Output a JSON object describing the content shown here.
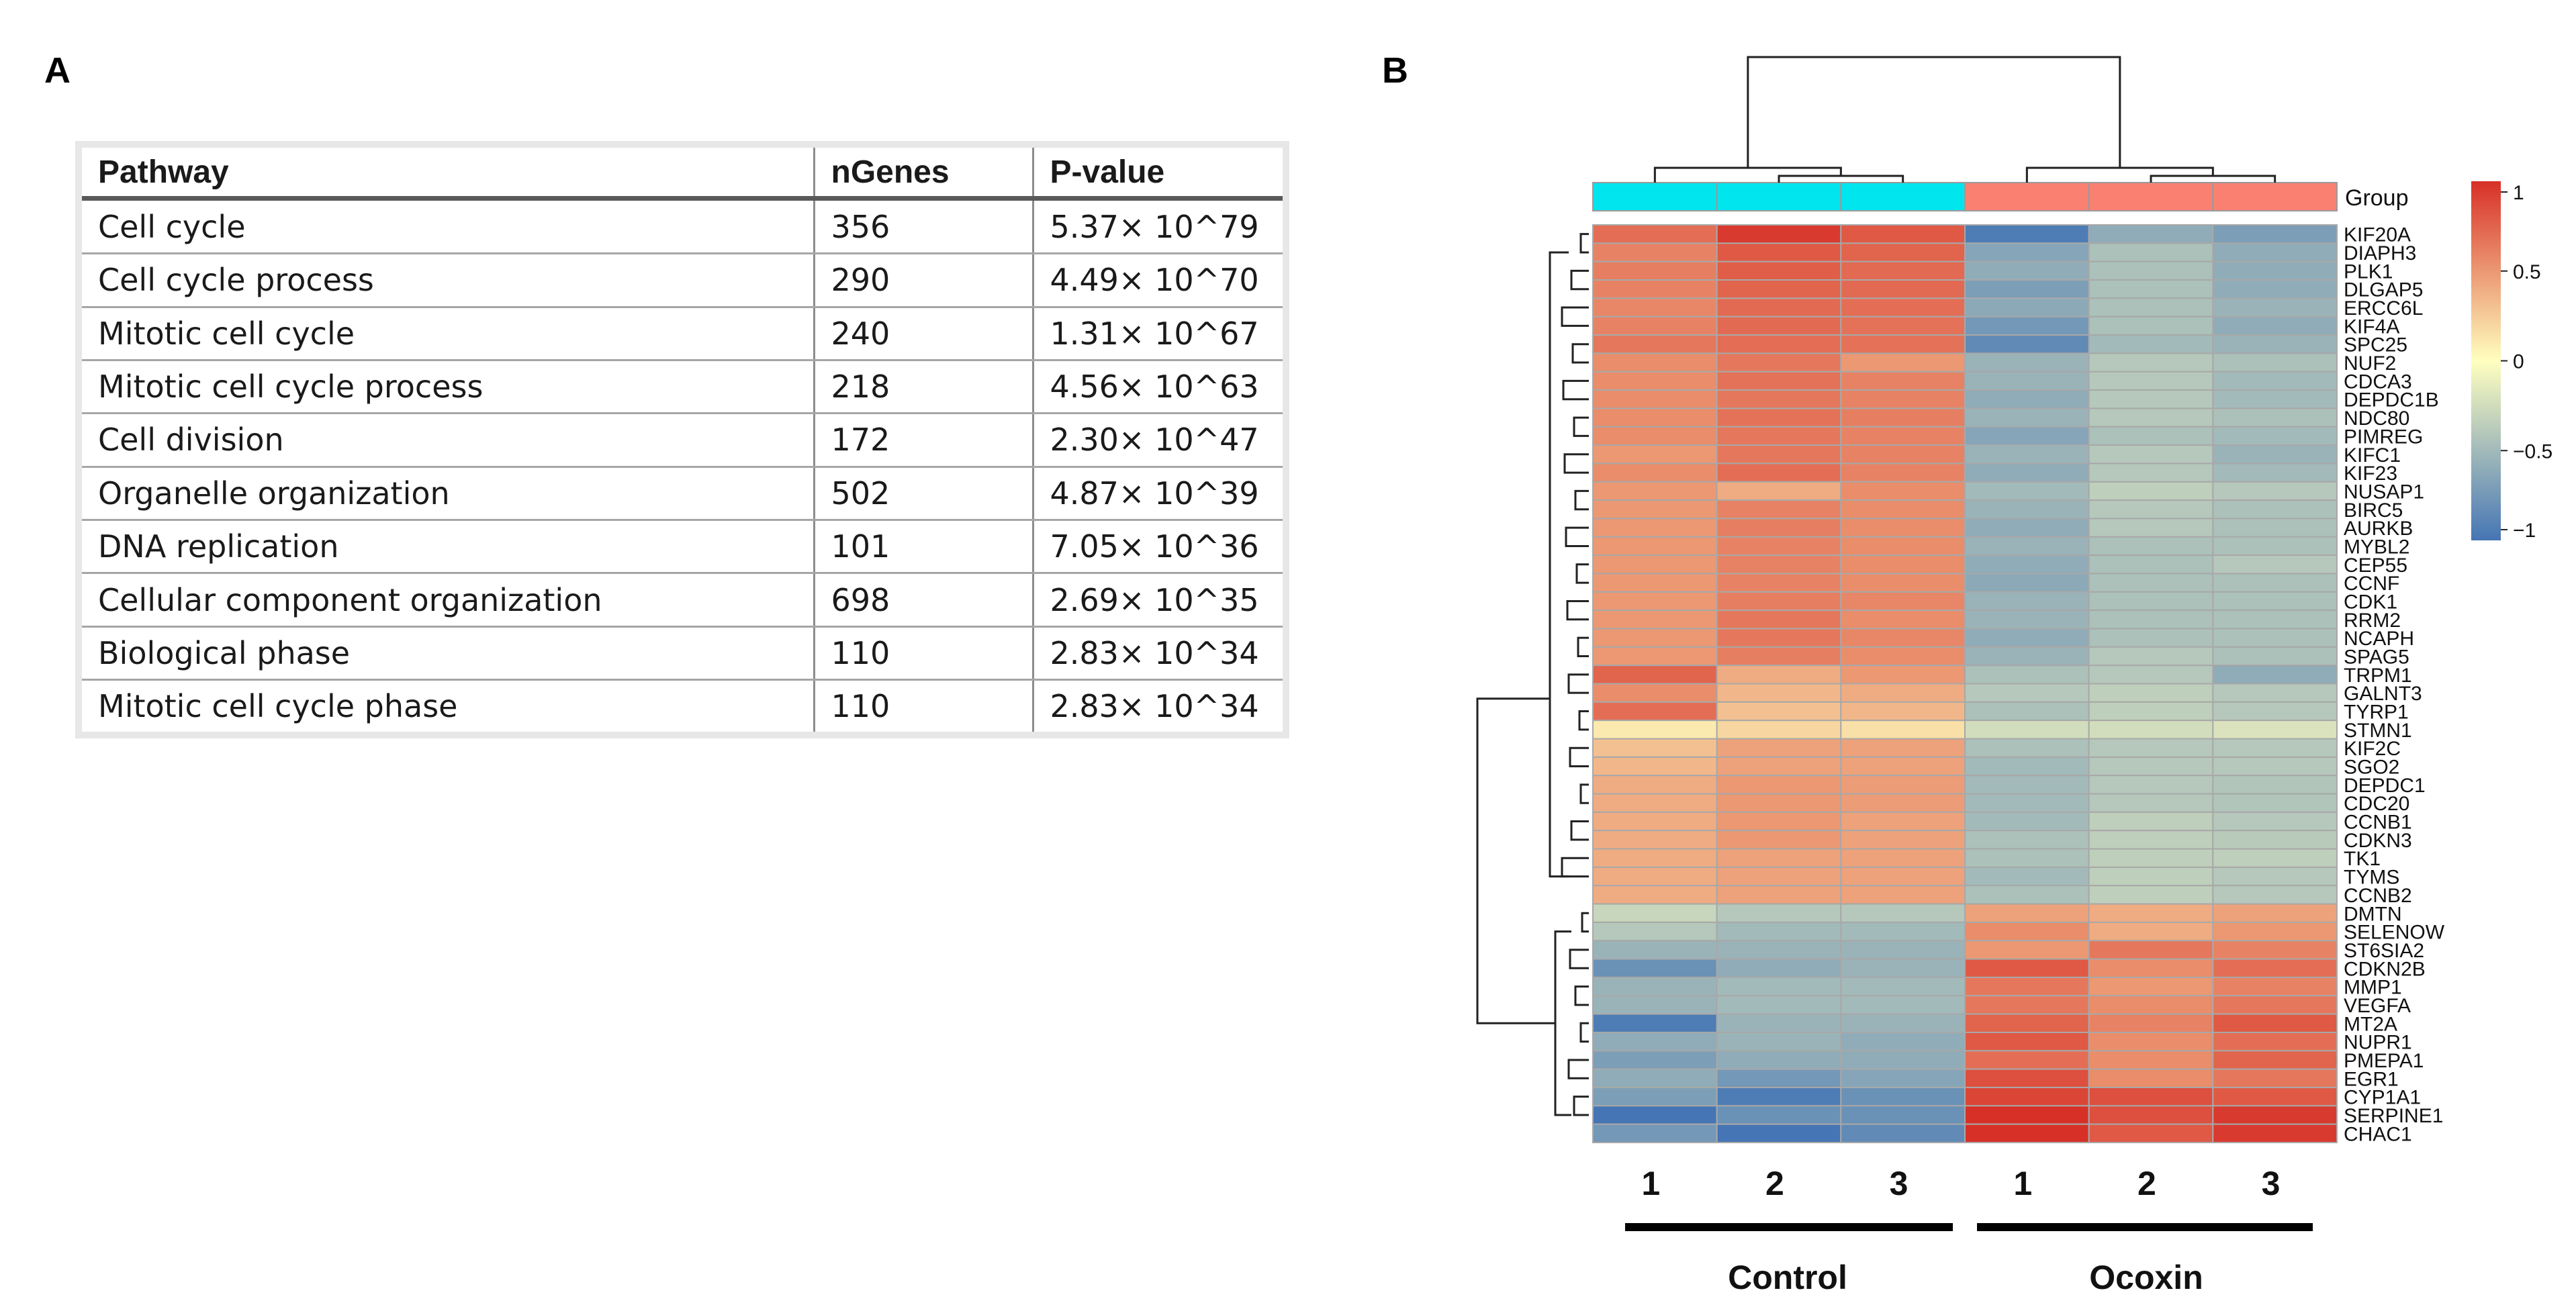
{
  "panels": {
    "a": "A",
    "b": "B"
  },
  "table": {
    "headers": [
      "Pathway",
      "nGenes",
      "P-value"
    ],
    "rows": [
      [
        "Cell cycle",
        "356",
        "5.37× 10^79"
      ],
      [
        "Cell cycle process",
        "290",
        "4.49× 10^70"
      ],
      [
        "Mitotic cell cycle",
        "240",
        "1.31× 10^67"
      ],
      [
        "Mitotic cell cycle process",
        "218",
        "4.56× 10^63"
      ],
      [
        "Cell division",
        "172",
        "2.30× 10^47"
      ],
      [
        "Organelle organization",
        "502",
        "4.87× 10^39"
      ],
      [
        "DNA replication",
        "101",
        "7.05× 10^36"
      ],
      [
        "Cellular component organization",
        "698",
        "2.69× 10^35"
      ],
      [
        "Biological phase",
        "110",
        "2.83× 10^34"
      ],
      [
        "Mitotic cell cycle phase",
        "110",
        "2.83× 10^34"
      ]
    ]
  },
  "chart_data": {
    "type": "heatmap",
    "title": "",
    "group_label": "Group",
    "group_colors": {
      "Control": "#00e5ee",
      "Ocoxin": "#fa8072"
    },
    "columns": [
      {
        "label": "1",
        "group": "Control"
      },
      {
        "label": "2",
        "group": "Control"
      },
      {
        "label": "3",
        "group": "Control"
      },
      {
        "label": "1",
        "group": "Ocoxin"
      },
      {
        "label": "2",
        "group": "Ocoxin"
      },
      {
        "label": "3",
        "group": "Ocoxin"
      }
    ],
    "group_labels": [
      "Control",
      "Ocoxin"
    ],
    "genes": [
      "KIF20A",
      "DIAPH3",
      "PLK1",
      "DLGAP5",
      "ERCC6L",
      "KIF4A",
      "SPC25",
      "NUF2",
      "CDCA3",
      "DEPDC1B",
      "NDC80",
      "PIMREG",
      "KIFC1",
      "KIF23",
      "NUSAP1",
      "BIRC5",
      "AURKB",
      "MYBL2",
      "CEP55",
      "CCNF",
      "CDK1",
      "RRM2",
      "NCAPH",
      "SPAG5",
      "TRPM1",
      "GALNT3",
      "TYRP1",
      "STMN1",
      "KIF2C",
      "SGO2",
      "DEPDC1",
      "CDC20",
      "CCNB1",
      "CDKN3",
      "TK1",
      "TYMS",
      "CCNB2",
      "DMTN",
      "SELENOW",
      "ST6SIA2",
      "CDKN2B",
      "MMP1",
      "VEGFA",
      "MT2A",
      "NUPR1",
      "PMEPA1",
      "EGR1",
      "CYP1A1",
      "SERPINE1",
      "CHAC1"
    ],
    "values": [
      [
        0.7,
        0.95,
        0.8,
        -0.95,
        -0.6,
        -0.7
      ],
      [
        0.6,
        0.8,
        0.75,
        -0.65,
        -0.45,
        -0.6
      ],
      [
        0.62,
        0.78,
        0.72,
        -0.6,
        -0.45,
        -0.6
      ],
      [
        0.6,
        0.75,
        0.72,
        -0.7,
        -0.45,
        -0.6
      ],
      [
        0.58,
        0.72,
        0.7,
        -0.62,
        -0.45,
        -0.55
      ],
      [
        0.6,
        0.72,
        0.68,
        -0.75,
        -0.45,
        -0.6
      ],
      [
        0.65,
        0.7,
        0.68,
        -0.85,
        -0.5,
        -0.55
      ],
      [
        0.55,
        0.65,
        0.5,
        -0.55,
        -0.4,
        -0.45
      ],
      [
        0.55,
        0.68,
        0.6,
        -0.55,
        -0.4,
        -0.5
      ],
      [
        0.55,
        0.65,
        0.6,
        -0.6,
        -0.4,
        -0.5
      ],
      [
        0.55,
        0.68,
        0.62,
        -0.55,
        -0.4,
        -0.45
      ],
      [
        0.55,
        0.65,
        0.6,
        -0.65,
        -0.45,
        -0.5
      ],
      [
        0.5,
        0.65,
        0.6,
        -0.55,
        -0.4,
        -0.55
      ],
      [
        0.55,
        0.7,
        0.6,
        -0.6,
        -0.4,
        -0.5
      ],
      [
        0.5,
        0.4,
        0.55,
        -0.5,
        -0.35,
        -0.4
      ],
      [
        0.5,
        0.6,
        0.55,
        -0.55,
        -0.4,
        -0.45
      ],
      [
        0.5,
        0.62,
        0.55,
        -0.6,
        -0.4,
        -0.45
      ],
      [
        0.5,
        0.6,
        0.55,
        -0.55,
        -0.45,
        -0.45
      ],
      [
        0.5,
        0.6,
        0.55,
        -0.6,
        -0.45,
        -0.4
      ],
      [
        0.5,
        0.6,
        0.55,
        -0.62,
        -0.45,
        -0.45
      ],
      [
        0.5,
        0.62,
        0.58,
        -0.55,
        -0.45,
        -0.45
      ],
      [
        0.5,
        0.65,
        0.55,
        -0.55,
        -0.45,
        -0.45
      ],
      [
        0.5,
        0.65,
        0.58,
        -0.6,
        -0.45,
        -0.45
      ],
      [
        0.5,
        0.62,
        0.55,
        -0.55,
        -0.4,
        -0.45
      ],
      [
        0.75,
        0.4,
        0.5,
        -0.45,
        -0.4,
        -0.6
      ],
      [
        0.55,
        0.35,
        0.4,
        -0.4,
        -0.35,
        -0.4
      ],
      [
        0.7,
        0.3,
        0.35,
        -0.45,
        -0.35,
        -0.4
      ],
      [
        0.1,
        0.2,
        0.15,
        -0.25,
        -0.25,
        -0.2
      ],
      [
        0.3,
        0.45,
        0.45,
        -0.45,
        -0.4,
        -0.4
      ],
      [
        0.35,
        0.45,
        0.45,
        -0.5,
        -0.4,
        -0.4
      ],
      [
        0.4,
        0.5,
        0.48,
        -0.5,
        -0.4,
        -0.42
      ],
      [
        0.4,
        0.5,
        0.48,
        -0.5,
        -0.4,
        -0.42
      ],
      [
        0.4,
        0.5,
        0.45,
        -0.5,
        -0.35,
        -0.4
      ],
      [
        0.4,
        0.5,
        0.45,
        -0.45,
        -0.35,
        -0.38
      ],
      [
        0.4,
        0.45,
        0.45,
        -0.45,
        -0.35,
        -0.35
      ],
      [
        0.4,
        0.45,
        0.45,
        -0.5,
        -0.35,
        -0.4
      ],
      [
        0.4,
        0.45,
        0.45,
        -0.45,
        -0.35,
        -0.4
      ],
      [
        -0.3,
        -0.4,
        -0.4,
        0.45,
        0.4,
        0.45
      ],
      [
        -0.4,
        -0.5,
        -0.5,
        0.55,
        0.4,
        0.5
      ],
      [
        -0.55,
        -0.55,
        -0.55,
        0.5,
        0.65,
        0.6
      ],
      [
        -0.8,
        -0.6,
        -0.55,
        0.8,
        0.55,
        0.7
      ],
      [
        -0.55,
        -0.5,
        -0.5,
        0.65,
        0.5,
        0.6
      ],
      [
        -0.55,
        -0.5,
        -0.5,
        0.65,
        0.55,
        0.65
      ],
      [
        -0.95,
        -0.55,
        -0.55,
        0.75,
        0.6,
        0.8
      ],
      [
        -0.6,
        -0.55,
        -0.6,
        0.8,
        0.55,
        0.7
      ],
      [
        -0.7,
        -0.6,
        -0.6,
        0.7,
        0.55,
        0.75
      ],
      [
        -0.6,
        -0.75,
        -0.65,
        0.85,
        0.55,
        0.65
      ],
      [
        -0.7,
        -0.95,
        -0.8,
        0.9,
        0.85,
        0.8
      ],
      [
        -1.0,
        -0.8,
        -0.8,
        1.0,
        0.85,
        0.95
      ],
      [
        -0.75,
        -1.0,
        -0.85,
        1.0,
        0.8,
        0.95
      ]
    ],
    "scale": {
      "min": -1,
      "max": 1,
      "ticks": [
        1,
        0.5,
        0,
        -0.5,
        -1
      ],
      "tick_labels": [
        "1",
        "0.5",
        "0",
        "−0.5",
        "−1"
      ]
    },
    "colors": {
      "low": "#4575b4",
      "mid": "#ffffbf",
      "high": "#d73027"
    }
  }
}
